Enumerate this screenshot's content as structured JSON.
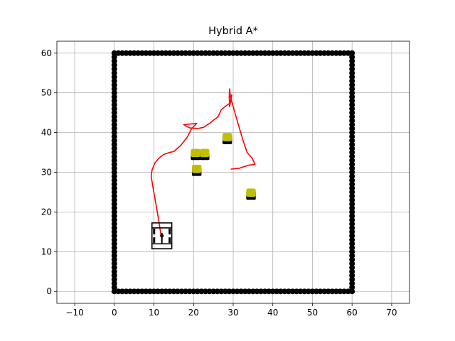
{
  "chart_data": {
    "type": "scatter",
    "title": "Hybrid A*",
    "xlabel": "",
    "ylabel": "",
    "xlim": [
      -14.5,
      74.5
    ],
    "ylim": [
      -3,
      63
    ],
    "xticks": [
      -10,
      0,
      10,
      20,
      30,
      40,
      50,
      60,
      70
    ],
    "yticks": [
      0,
      10,
      20,
      30,
      40,
      50,
      60
    ],
    "grid": true,
    "colors": {
      "boundary": "#000000",
      "path": "#ff0000",
      "obstacle_fill": "#bfbf00",
      "obstacle_edge": "#000000",
      "vehicle": "#000000",
      "grid": "#b0b0b0"
    },
    "boundary": {
      "xmin": 0,
      "xmax": 60,
      "ymin": 0,
      "ymax": 60,
      "spacing": 1
    },
    "obstacles": [
      {
        "x": 20.5,
        "y": 34.5
      },
      {
        "x": 22.8,
        "y": 34.5
      },
      {
        "x": 28.5,
        "y": 38.5
      },
      {
        "x": 20.8,
        "y": 30.5
      },
      {
        "x": 34.5,
        "y": 24.5
      }
    ],
    "path": [
      [
        11.8,
        14.0
      ],
      [
        11.2,
        18.0
      ],
      [
        10.5,
        22.0
      ],
      [
        9.8,
        26.0
      ],
      [
        9.3,
        29.0
      ],
      [
        9.5,
        30.5
      ],
      [
        10.2,
        32.3
      ],
      [
        11.3,
        33.6
      ],
      [
        12.5,
        34.5
      ],
      [
        14.0,
        35.0
      ],
      [
        15.0,
        35.2
      ],
      [
        16.8,
        36.8
      ],
      [
        18.5,
        39.0
      ],
      [
        19.5,
        41.0
      ],
      [
        20.8,
        42.3
      ],
      [
        17.5,
        42.0
      ],
      [
        19.0,
        41.2
      ],
      [
        21.0,
        41.0
      ],
      [
        22.5,
        41.3
      ],
      [
        24.0,
        42.3
      ],
      [
        25.3,
        43.3
      ],
      [
        26.2,
        44.0
      ],
      [
        27.0,
        45.8
      ],
      [
        28.3,
        46.8
      ],
      [
        29.3,
        47.5
      ],
      [
        29.6,
        49.3
      ],
      [
        29.6,
        49.5
      ],
      [
        29.3,
        48.0
      ],
      [
        29.1,
        46.5
      ],
      [
        29.0,
        49.0
      ],
      [
        29.1,
        51.0
      ],
      [
        29.3,
        49.0
      ],
      [
        31.0,
        43.0
      ],
      [
        32.5,
        38.0
      ],
      [
        33.5,
        35.0
      ],
      [
        34.8,
        33.5
      ],
      [
        35.5,
        32.0
      ],
      [
        34.0,
        31.8
      ],
      [
        33.0,
        31.5
      ],
      [
        31.5,
        31.0
      ],
      [
        29.5,
        30.8
      ]
    ],
    "vehicle": {
      "x": 12.0,
      "y": 14.0,
      "length": 5.0,
      "width": 6.5
    }
  }
}
